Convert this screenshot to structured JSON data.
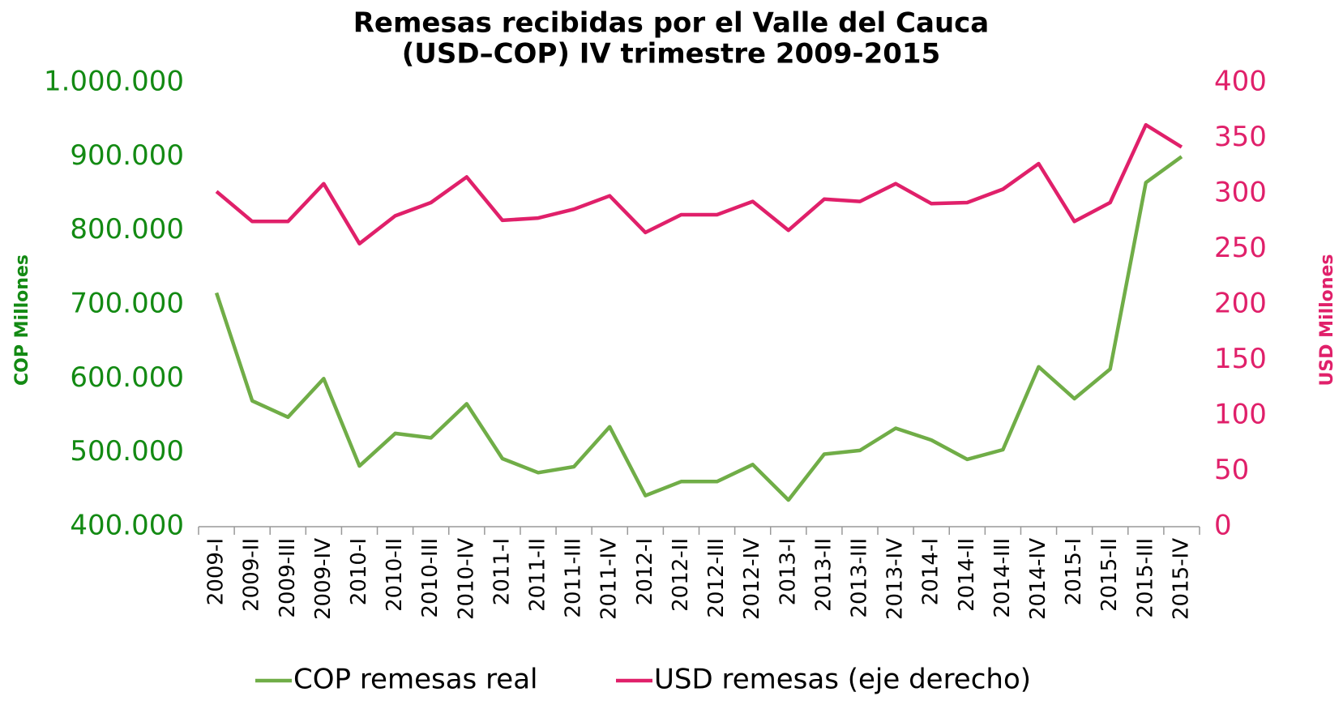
{
  "chart_data": {
    "type": "line",
    "title": "Remesas recibidas por el Valle del Cauca",
    "subtitle": "(USD–COP) IV trimestre 2009-2015",
    "y_label": "COP Millones",
    "y2_label": "USD Millones",
    "categories": [
      "2009-I",
      "2009-II",
      "2009-III",
      "2009-IV",
      "2010-I",
      "2010-II",
      "2010-III",
      "2010-IV",
      "2011-I",
      "2011-II",
      "2011-III",
      "2011-IV",
      "2012-I",
      "2012-II",
      "2012-III",
      "2012-IV",
      "2013-I",
      "2013-II",
      "2013-III",
      "2013-IV",
      "2014-I",
      "2014-II",
      "2014-III",
      "2014-IV",
      "2015-I",
      "2015-II",
      "2015-III",
      "2015-IV"
    ],
    "series": [
      {
        "name": "COP remesas real",
        "color": "#70ad47",
        "values": [
          716000,
          570000,
          548000,
          600000,
          482000,
          526000,
          520000,
          566000,
          492000,
          473000,
          481000,
          535000,
          442000,
          461000,
          461000,
          484000,
          436000,
          498000,
          503000,
          533000,
          517000,
          491000,
          504000,
          616000,
          573000,
          613000,
          865000,
          900000
        ]
      },
      {
        "name": "USD remesas (eje derecho)",
        "color": "#e0206a",
        "axis": "y2",
        "values": [
          302,
          275,
          275,
          309,
          255,
          280,
          292,
          315,
          276,
          278,
          286,
          298,
          265,
          281,
          281,
          293,
          267,
          295,
          293,
          309,
          291,
          292,
          304,
          327,
          275,
          292,
          362,
          342
        ]
      }
    ],
    "ylim": [
      400000,
      1000000
    ],
    "yticks": [
      {
        "value": 400000,
        "label": "400.000"
      },
      {
        "value": 500000,
        "label": "500.000"
      },
      {
        "value": 600000,
        "label": "600.000"
      },
      {
        "value": 700000,
        "label": "700.000"
      },
      {
        "value": 800000,
        "label": "800.000"
      },
      {
        "value": 900000,
        "label": "900.000"
      },
      {
        "value": 1000000,
        "label": "1.000.000"
      }
    ],
    "y2lim": [
      0,
      400
    ],
    "y2ticks": [
      0,
      50,
      100,
      150,
      200,
      250,
      300,
      350,
      400
    ],
    "ytick_color": "#138a13",
    "y2tick_color": "#e0206a",
    "grid": false,
    "legend": "bottom"
  }
}
